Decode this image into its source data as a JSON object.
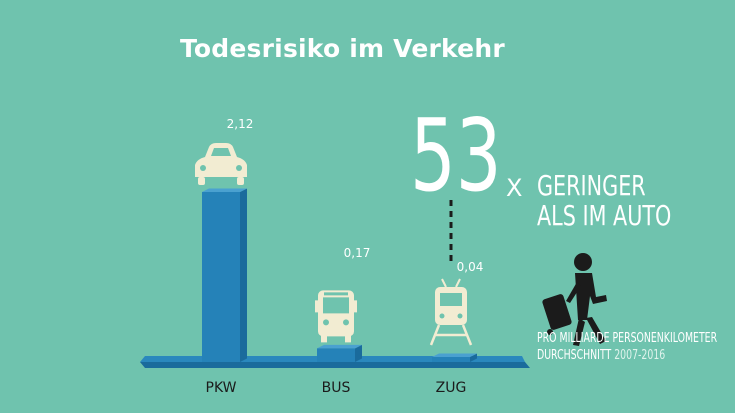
{
  "chart_data": {
    "type": "bar",
    "title": "Todesrisiko im Verkehr",
    "categories": [
      "PKW",
      "BUS",
      "ZUG"
    ],
    "values": [
      2.12,
      0.17,
      0.04
    ],
    "value_labels": [
      "2,12",
      "0,17",
      "0,04"
    ],
    "icons": [
      "car-icon",
      "bus-icon",
      "train-icon"
    ],
    "xlabel": "",
    "ylabel": "",
    "grid": false,
    "legend": "none"
  },
  "callout": {
    "number": "53",
    "x": "X",
    "line1": "GERINGER",
    "line2": "ALS IM AUTO"
  },
  "footnote": {
    "line1": "PRO MILLIARDE PERSONENKILOMETER",
    "line2": "DURCHSCHNITT",
    "years": "2007-2016"
  },
  "icons": {
    "traveler": "person-with-suitcase-icon"
  },
  "colors": {
    "background": "#6fc3ae",
    "bar_front": "#2582b8",
    "bar_side": "#1a6b9c",
    "bar_top": "#4aa1d0",
    "platform": "#2a88bd",
    "icon_fill": "#f2ecd2",
    "text": "#ffffff"
  }
}
